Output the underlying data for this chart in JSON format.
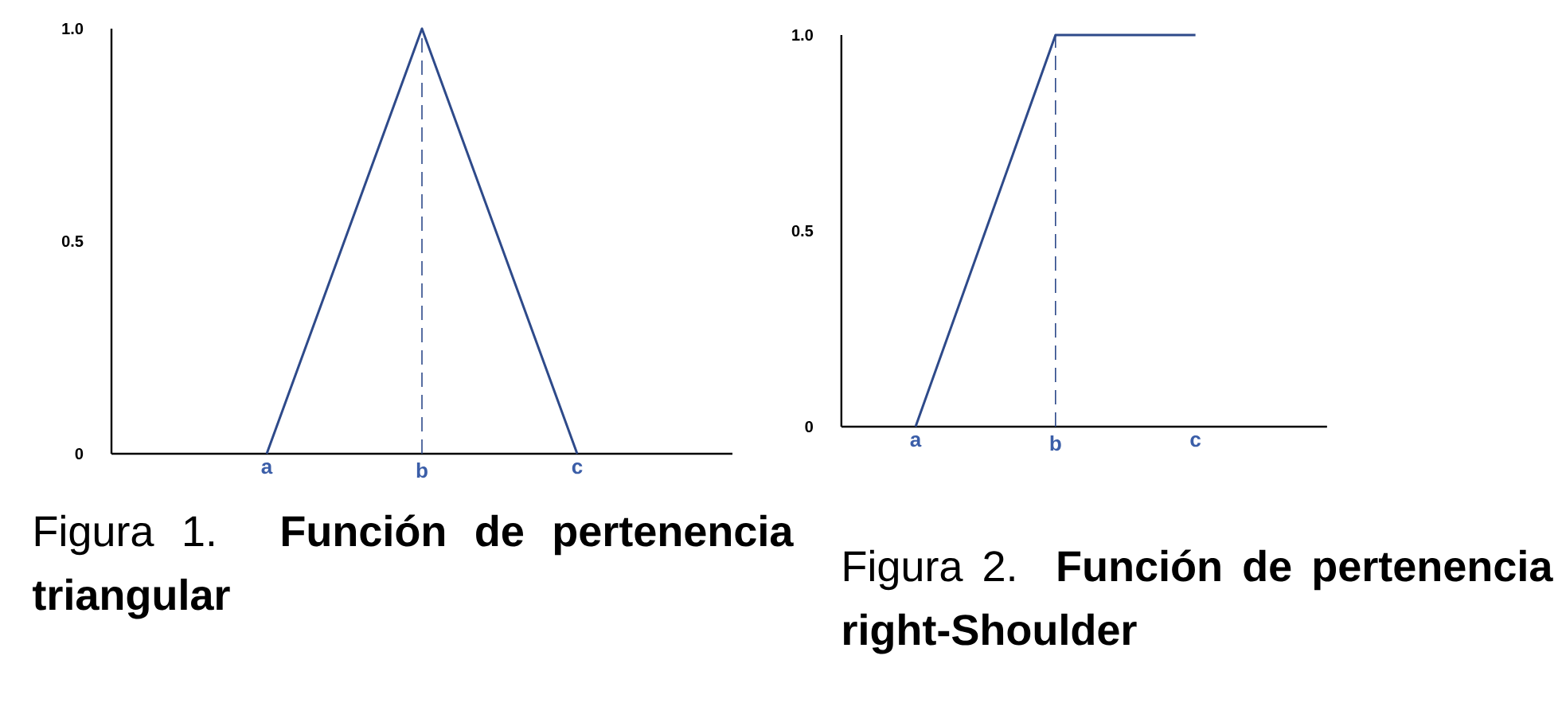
{
  "chart_data": [
    {
      "type": "line",
      "title": "Figura 1. **Función de pertenencia triangular**",
      "categories": [
        null,
        "a",
        "b",
        "c",
        null
      ],
      "values": [
        null,
        0,
        1,
        0,
        null
      ],
      "color": "#2e4a8a",
      "ylim": [
        0,
        1
      ],
      "yticks": [
        0,
        0.5,
        {
          "value": 1,
          "label": "1.0"
        }
      ],
      "ref_lines": [
        {
          "axis": "x",
          "value": "b",
          "line_style": "dashed"
        }
      ]
    },
    {
      "type": "line",
      "title": "Figura 2. **Función de pertenencia right-Shoulder**",
      "categories": [
        "a",
        "b",
        "c"
      ],
      "values": [
        0,
        1,
        1
      ],
      "color": "#2e4a8a",
      "ylim": [
        0,
        1
      ],
      "yticks": [
        0,
        0.5,
        {
          "value": 1,
          "label": "1.0"
        }
      ],
      "ref_lines": [
        {
          "axis": "x",
          "value": "b",
          "line_style": "dashed"
        }
      ]
    }
  ]
}
